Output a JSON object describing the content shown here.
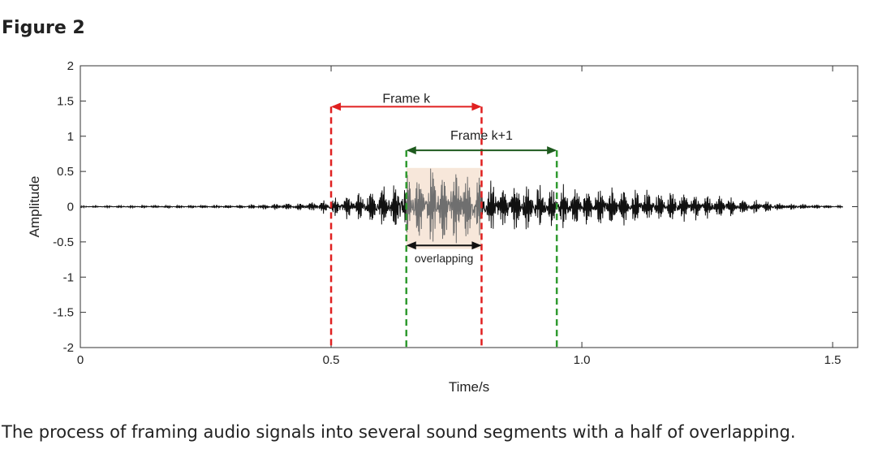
{
  "figure": {
    "title": "Figure 2",
    "caption": "The process of framing audio signals into several sound segments with a half of overlapping."
  },
  "chart_data": {
    "type": "line",
    "xlabel": "Time/s",
    "ylabel": "Amplitude",
    "xlim": [
      0,
      1.55
    ],
    "ylim": [
      -2,
      2
    ],
    "xticks": [
      0,
      0.5,
      1.0,
      1.5
    ],
    "xtick_labels": [
      "0",
      "0.5",
      "1.0",
      "1.5"
    ],
    "yticks": [
      2,
      1.5,
      1,
      0.5,
      0,
      -0.5,
      -1,
      -1.5,
      -2
    ],
    "ytick_labels": [
      "2",
      "1.5",
      "1",
      "0.5",
      "0",
      "-0.5",
      "-1",
      "-1.5",
      "-2"
    ],
    "grid": false,
    "signal": {
      "color": "#111111",
      "overlap_color": "#6f6f6f",
      "envelope": [
        {
          "t": 0.0,
          "a": 0.01
        },
        {
          "t": 0.3,
          "a": 0.02
        },
        {
          "t": 0.45,
          "a": 0.05
        },
        {
          "t": 0.5,
          "a": 0.1
        },
        {
          "t": 0.6,
          "a": 0.25
        },
        {
          "t": 0.72,
          "a": 0.55
        },
        {
          "t": 0.8,
          "a": 0.35
        },
        {
          "t": 0.9,
          "a": 0.28
        },
        {
          "t": 1.0,
          "a": 0.25
        },
        {
          "t": 1.1,
          "a": 0.22
        },
        {
          "t": 1.2,
          "a": 0.18
        },
        {
          "t": 1.3,
          "a": 0.12
        },
        {
          "t": 1.4,
          "a": 0.05
        },
        {
          "t": 1.52,
          "a": 0.01
        }
      ]
    },
    "frames": [
      {
        "label": "Frame k",
        "start": 0.5,
        "end": 0.8,
        "color": "#e02020",
        "label_y": 1.45,
        "arrow_y": 1.42
      },
      {
        "label": "Frame k+1",
        "start": 0.65,
        "end": 0.95,
        "color": "#2f9a2f",
        "arrow_color": "#1e5a1e",
        "label_y": 0.93,
        "arrow_y": 0.8
      }
    ],
    "overlap": {
      "label": "overlapping",
      "start": 0.65,
      "end": 0.8,
      "fill": "#f7e7da",
      "arrow_y": -0.55
    }
  }
}
